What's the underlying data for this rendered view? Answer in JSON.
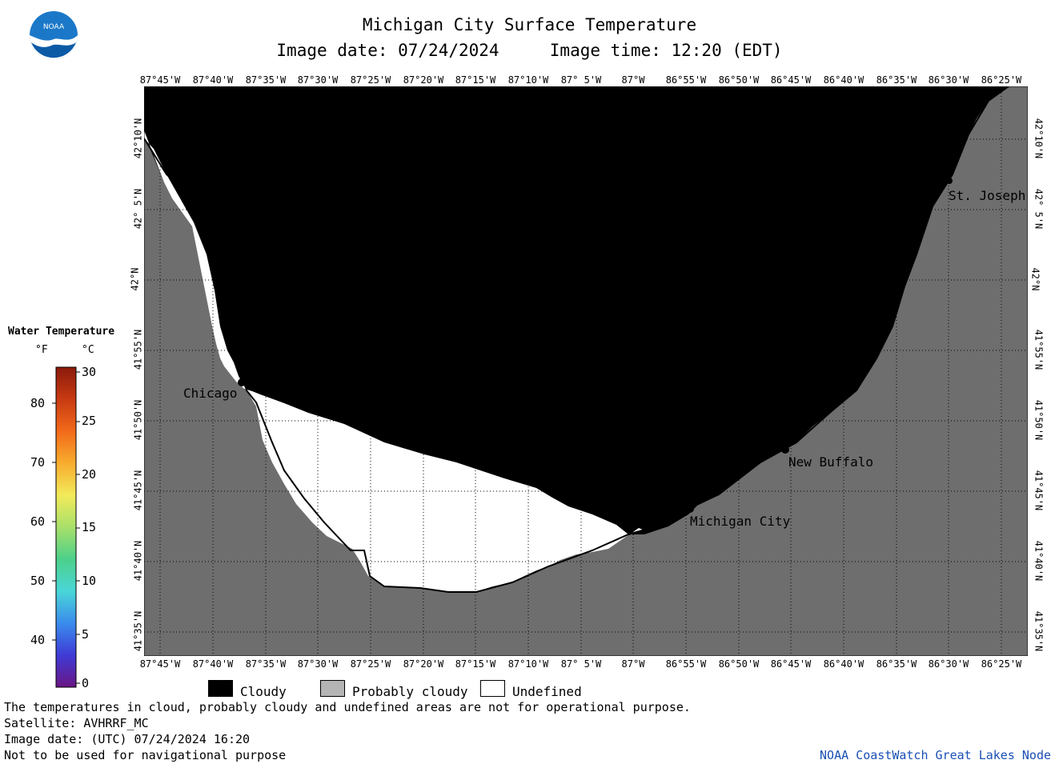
{
  "header": {
    "title": "Michigan City Surface Temperature",
    "image_date": "Image date: 07/24/2024",
    "image_time": "Image time: 12:20 (EDT)"
  },
  "logo": {
    "text": "NOAA",
    "icon": "noaa-logo"
  },
  "map": {
    "lon_labels": [
      "87°45'W",
      "87°40'W",
      "87°35'W",
      "87°30'W",
      "87°25'W",
      "87°20'W",
      "87°15'W",
      "87°10'W",
      "87° 5'W",
      "87°W",
      "86°55'W",
      "86°50'W",
      "86°45'W",
      "86°40'W",
      "86°35'W",
      "86°30'W",
      "86°25'W"
    ],
    "lat_labels": [
      "42°10'N",
      "42° 5'N",
      "42°N",
      "41°55'N",
      "41°50'N",
      "41°45'N",
      "41°40'N",
      "41°35'N"
    ],
    "cities": [
      {
        "name": "Chicago"
      },
      {
        "name": "Michigan City"
      },
      {
        "name": "New Buffalo"
      },
      {
        "name": "St. Joseph"
      }
    ],
    "colors": {
      "cloudy": "#000000",
      "probably_cloudy": "#6e6e6e",
      "undefined": "#ffffff"
    }
  },
  "legend": {
    "title": "Water Temperature",
    "unit_f": "°F",
    "unit_c": "°C",
    "f_ticks": [
      "80",
      "70",
      "60",
      "50",
      "40"
    ],
    "c_ticks": [
      "30",
      "25",
      "20",
      "15",
      "10",
      "5",
      "0"
    ]
  },
  "key": {
    "cloudy": "Cloudy",
    "probably_cloudy": "Probably cloudy",
    "undefined": "Undefined"
  },
  "footer": {
    "line1": "The temperatures in cloud, probably cloudy and undefined areas are not for operational purpose.",
    "line2": "Satellite: AVHRRF_MC",
    "line3": "Image date: (UTC) 07/24/2024  16:20",
    "line4": "Not to be used for navigational purpose",
    "credit": "NOAA CoastWatch Great Lakes Node"
  }
}
